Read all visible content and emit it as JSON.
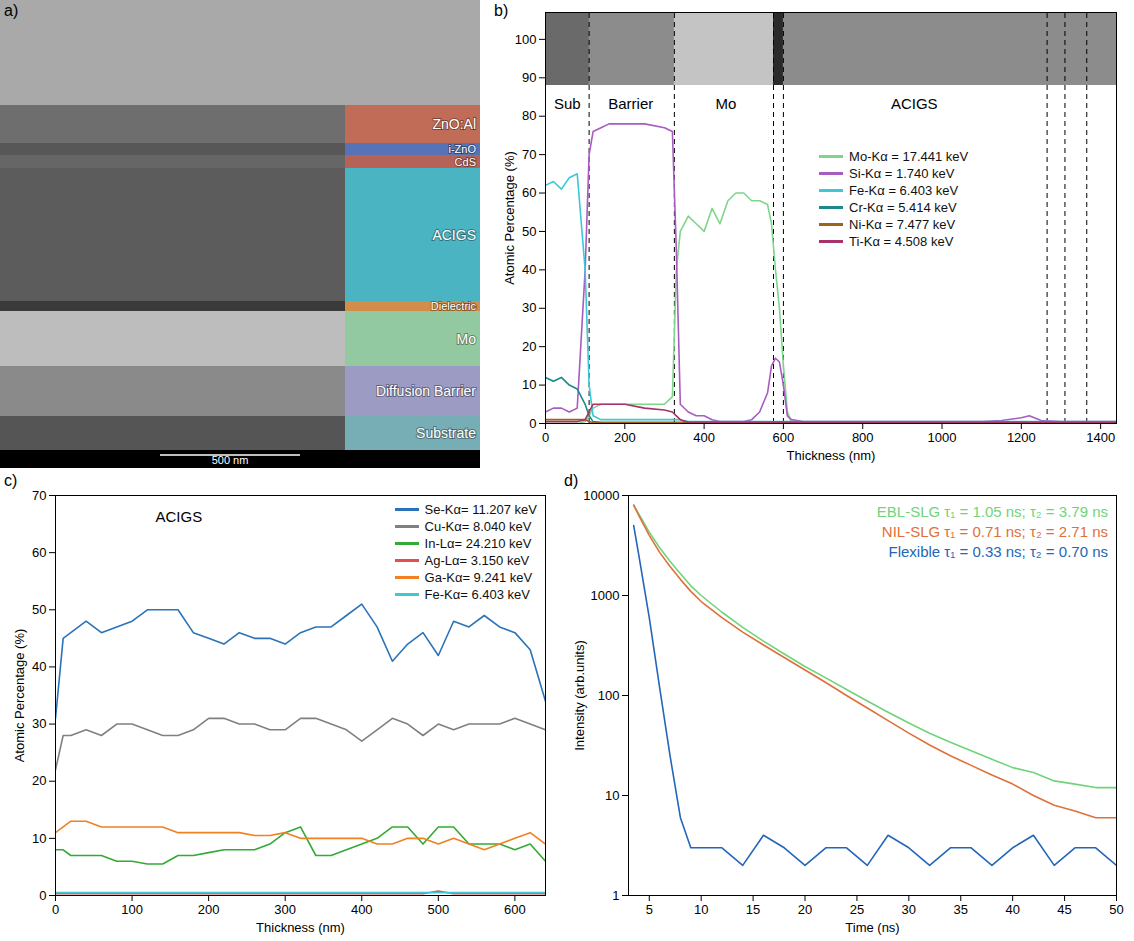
{
  "chart_data": [
    {
      "type": "micrograph",
      "title": "a)",
      "layers": [
        {
          "label": "ZnO:Al",
          "color": "#b5523a"
        },
        {
          "label": "i-ZnO",
          "color": "#3a5aa8"
        },
        {
          "label": "CdS",
          "color": "#a8463a"
        },
        {
          "label": "ACIGS",
          "color": "#2aa7b8"
        },
        {
          "label": "Dielectric",
          "color": "#c87a2a"
        },
        {
          "label": "Mo",
          "color": "#7fbf8f"
        },
        {
          "label": "Diffusion Barrier",
          "color": "#8a8ab8"
        },
        {
          "label": "Substrate",
          "color": "#5fa0a8"
        }
      ],
      "scale_bar": "500 nm"
    },
    {
      "type": "line",
      "title": "b)",
      "x_label": "Thickness (nm)",
      "y_label": "Atomic Percentage (%)",
      "xlim": [
        0,
        1440
      ],
      "xticks": [
        0,
        200,
        400,
        600,
        800,
        1000,
        1200,
        1400
      ],
      "ylim": [
        0,
        107
      ],
      "yticks": [
        0,
        10,
        20,
        30,
        40,
        50,
        60,
        70,
        80,
        90,
        100
      ],
      "grid": false,
      "legend": "center",
      "inset_range": [
        88,
        107
      ],
      "boundaries": [
        110,
        325,
        575,
        600,
        1265,
        1310,
        1365
      ],
      "regions": [
        {
          "label": "Sub",
          "x": 55,
          "y": 83
        },
        {
          "label": "Barrier",
          "x": 215,
          "y": 83
        },
        {
          "label": "Mo",
          "x": 455,
          "y": 83
        },
        {
          "label": "ACIGS",
          "x": 930,
          "y": 83
        }
      ],
      "x": [
        0,
        20,
        40,
        60,
        80,
        100,
        110,
        120,
        140,
        160,
        200,
        250,
        300,
        320,
        330,
        340,
        360,
        380,
        400,
        420,
        440,
        460,
        480,
        500,
        520,
        540,
        560,
        570,
        580,
        590,
        600,
        610,
        620,
        650,
        700,
        800,
        900,
        1000,
        1100,
        1150,
        1200,
        1220,
        1250,
        1300,
        1350,
        1400,
        1440
      ],
      "series": [
        {
          "name": "Mo-Kα = 17.441 keV",
          "color": "#7ed68a",
          "values": [
            0,
            0,
            0,
            0,
            0,
            0.5,
            2,
            4,
            5,
            5,
            5,
            5,
            5,
            7,
            40,
            50,
            54,
            52,
            50,
            56,
            52,
            58,
            60,
            60,
            58,
            58,
            57,
            52,
            40,
            30,
            15,
            3,
            0.5,
            0.3,
            0.3,
            0.3,
            0.3,
            0.3,
            0.3,
            0.3,
            0.3,
            0.3,
            0.3,
            0.3,
            0.3,
            0.3,
            0.3
          ]
        },
        {
          "name": "Si-Kα = 1.740 keV",
          "color": "#a85cc0",
          "values": [
            3,
            4,
            4,
            3,
            4,
            40,
            70,
            76,
            77,
            78,
            78,
            78,
            77,
            76,
            45,
            5,
            3,
            2,
            2,
            1,
            0.5,
            0.5,
            0.5,
            0.5,
            1,
            3,
            8,
            15,
            17,
            16,
            10,
            2,
            1,
            0.5,
            0.5,
            0.5,
            0.5,
            0.5,
            0.5,
            0.8,
            1.5,
            2,
            0.8,
            0.5,
            0.5,
            0.5,
            0.5
          ]
        },
        {
          "name": "Fe-Kα = 6.403 keV",
          "color": "#3cc8d8",
          "values": [
            62,
            63,
            61,
            64,
            65,
            40,
            10,
            2,
            1,
            1,
            1,
            1,
            1,
            1,
            1,
            1,
            0.5,
            0.5,
            0.5,
            0.5,
            0.5,
            0.5,
            0.5,
            0.5,
            0.5,
            0.5,
            0.5,
            0.5,
            0.5,
            0.5,
            0.5,
            0.5,
            0.5,
            0.5,
            0.5,
            0.5,
            0.5,
            0.5,
            0.5,
            0.5,
            0.5,
            0.5,
            0.5,
            0.5,
            0.5,
            0.5,
            0.5
          ]
        },
        {
          "name": "Cr-Kα = 5.414 keV",
          "color": "#1b8a8a",
          "values": [
            12,
            11,
            12,
            10,
            9,
            5,
            2,
            0.5,
            0.3,
            0.3,
            0.3,
            0.3,
            0.3,
            0.3,
            0.3,
            0.3,
            0.3,
            0.3,
            0.3,
            0.3,
            0.3,
            0.3,
            0.3,
            0.3,
            0.3,
            0.3,
            0.3,
            0.3,
            0.3,
            0.3,
            0.3,
            0.3,
            0.3,
            0.3,
            0.3,
            0.3,
            0.3,
            0.3,
            0.3,
            0.3,
            0.3,
            0.3,
            0.3,
            0.3,
            0.3,
            0.3,
            0.3
          ]
        },
        {
          "name": "Ni-Kα = 7.477 keV",
          "color": "#a0621a",
          "values": [
            1,
            1,
            1,
            1,
            1,
            1,
            0.5,
            0.2,
            0.2,
            0.2,
            0.2,
            0.2,
            0.2,
            0.2,
            0.2,
            0.2,
            0.2,
            0.2,
            0.2,
            0.2,
            0.2,
            0.2,
            0.2,
            0.2,
            0.2,
            0.2,
            0.2,
            0.2,
            0.2,
            0.2,
            0.2,
            0.2,
            0.2,
            0.2,
            0.2,
            0.2,
            0.2,
            0.2,
            0.2,
            0.2,
            0.2,
            0.2,
            0.2,
            0.2,
            0.2,
            0.2,
            0.2
          ]
        },
        {
          "name": "Ti-Kα = 4.508 keV",
          "color": "#a8326a",
          "values": [
            0.5,
            0.5,
            0.5,
            0.5,
            0.5,
            1,
            3,
            5,
            5,
            5,
            5,
            4,
            3.5,
            3,
            2,
            1,
            0.3,
            0.3,
            0.3,
            0.3,
            0.3,
            0.3,
            0.3,
            0.3,
            0.3,
            0.3,
            0.3,
            0.3,
            0.3,
            0.3,
            0.3,
            0.3,
            0.3,
            0.3,
            0.3,
            0.3,
            0.3,
            0.3,
            0.3,
            0.3,
            0.3,
            0.3,
            0.3,
            0.3,
            0.3,
            0.3,
            0.3
          ]
        }
      ]
    },
    {
      "type": "line",
      "title": "c)",
      "annotation": "ACIGS",
      "x_label": "Thickness (nm)",
      "y_label": "Atomic Percentage (%)",
      "xlim": [
        0,
        640
      ],
      "xticks": [
        0,
        100,
        200,
        300,
        400,
        500,
        600
      ],
      "ylim": [
        0,
        70
      ],
      "yticks": [
        0,
        10,
        20,
        30,
        40,
        50,
        60,
        70
      ],
      "grid": false,
      "legend": "upper right",
      "x": [
        0,
        10,
        20,
        40,
        60,
        80,
        100,
        120,
        140,
        160,
        180,
        200,
        220,
        240,
        260,
        280,
        300,
        320,
        340,
        360,
        380,
        400,
        420,
        440,
        460,
        480,
        500,
        520,
        540,
        560,
        580,
        600,
        620,
        640
      ],
      "series": [
        {
          "name": "Se-Kα= 11.207 keV",
          "color": "#2b73b8",
          "values": [
            31,
            45,
            46,
            48,
            46,
            47,
            48,
            50,
            50,
            50,
            46,
            45,
            44,
            46,
            45,
            45,
            44,
            46,
            47,
            47,
            49,
            51,
            47,
            41,
            44,
            46,
            42,
            48,
            47,
            49,
            47,
            46,
            43,
            34
          ]
        },
        {
          "name": "Cu-Kα= 8.040 keV",
          "color": "#808080",
          "values": [
            22,
            28,
            28,
            29,
            28,
            30,
            30,
            29,
            28,
            28,
            29,
            31,
            31,
            30,
            30,
            29,
            29,
            31,
            31,
            30,
            29,
            27,
            29,
            31,
            30,
            28,
            30,
            29,
            30,
            30,
            30,
            31,
            30,
            29
          ]
        },
        {
          "name": "In-Lα= 24.210 keV",
          "color": "#33aa33",
          "values": [
            8,
            8,
            7,
            7,
            7,
            6,
            6,
            5.5,
            5.5,
            7,
            7,
            7.5,
            8,
            8,
            8,
            9,
            11,
            12,
            7,
            7,
            8,
            9,
            10,
            12,
            12,
            9,
            12,
            12,
            9,
            9,
            9,
            8,
            9,
            6
          ]
        },
        {
          "name": "Ag-Lα= 3.150 keV",
          "color": "#e05050",
          "values": [
            0.3,
            0.3,
            0.3,
            0.3,
            0.3,
            0.3,
            0.3,
            0.3,
            0.3,
            0.3,
            0.3,
            0.3,
            0.3,
            0.3,
            0.3,
            0.3,
            0.3,
            0.3,
            0.3,
            0.3,
            0.3,
            0.3,
            0.3,
            0.3,
            0.3,
            0.3,
            0.8,
            0.3,
            0.3,
            0.3,
            0.3,
            0.3,
            0.3,
            0.3
          ]
        },
        {
          "name": "Ga-Kα= 9.241 keV",
          "color": "#f08020",
          "values": [
            11,
            12,
            13,
            13,
            12,
            12,
            12,
            12,
            12,
            11,
            11,
            11,
            11,
            11,
            10.5,
            10.5,
            11,
            10,
            10,
            10,
            10,
            10,
            9,
            9,
            10,
            10,
            9,
            10,
            9,
            8,
            9,
            10,
            11,
            9
          ]
        },
        {
          "name": "Fe-Kα= 6.403 keV",
          "color": "#40c8d0",
          "values": [
            0.5,
            0.5,
            0.5,
            0.5,
            0.5,
            0.5,
            0.5,
            0.5,
            0.5,
            0.5,
            0.5,
            0.5,
            0.5,
            0.5,
            0.5,
            0.5,
            0.5,
            0.5,
            0.5,
            0.5,
            0.5,
            0.5,
            0.5,
            0.5,
            0.5,
            0.5,
            0.5,
            0.5,
            0.5,
            0.5,
            0.5,
            0.5,
            0.5,
            0.5
          ]
        }
      ]
    },
    {
      "type": "line",
      "title": "d)",
      "x_label": "Time (ns)",
      "y_label": "Intensity (arb.units)",
      "log": "y",
      "xlim": [
        3,
        50
      ],
      "xticks": [
        5,
        10,
        15,
        20,
        25,
        30,
        35,
        40,
        45,
        50
      ],
      "ylim": [
        1,
        10000
      ],
      "yticks": [
        1,
        10,
        100,
        1000,
        10000
      ],
      "grid": false,
      "legend": "upper right",
      "x": [
        3.5,
        4,
        5,
        6,
        7,
        8,
        9,
        10,
        12,
        14,
        16,
        18,
        20,
        22,
        24,
        26,
        28,
        30,
        32,
        34,
        36,
        38,
        40,
        42,
        44,
        46,
        48,
        50
      ],
      "series": [
        {
          "name": "EBL-SLG τ₁ = 1.05 ns; τ₂ = 3.79 ns",
          "color": "#6fd47a",
          "values": [
            8000,
            6500,
            4300,
            3000,
            2200,
            1650,
            1250,
            1000,
            680,
            480,
            350,
            260,
            195,
            150,
            115,
            88,
            68,
            53,
            42,
            34,
            28,
            23,
            19,
            17,
            14,
            13,
            12,
            12
          ]
        },
        {
          "name": "NIL-SLG τ₁ = 0.71 ns; τ₂ = 2.71 ns",
          "color": "#e0703a",
          "values": [
            8000,
            6300,
            4000,
            2700,
            1950,
            1450,
            1100,
            870,
            600,
            430,
            320,
            240,
            180,
            135,
            100,
            75,
            56,
            42,
            32,
            25,
            20,
            16,
            13,
            10,
            8,
            7,
            6,
            6
          ]
        },
        {
          "name": "Flexible τ₁ = 0.33 ns; τ₂ = 0.70 ns",
          "color": "#2466b8",
          "values": [
            5000,
            2500,
            600,
            120,
            25,
            6,
            3,
            3,
            3,
            2,
            4,
            3,
            2,
            3,
            3,
            2,
            4,
            3,
            2,
            3,
            3,
            2,
            3,
            4,
            2,
            3,
            3,
            2
          ]
        }
      ]
    }
  ]
}
